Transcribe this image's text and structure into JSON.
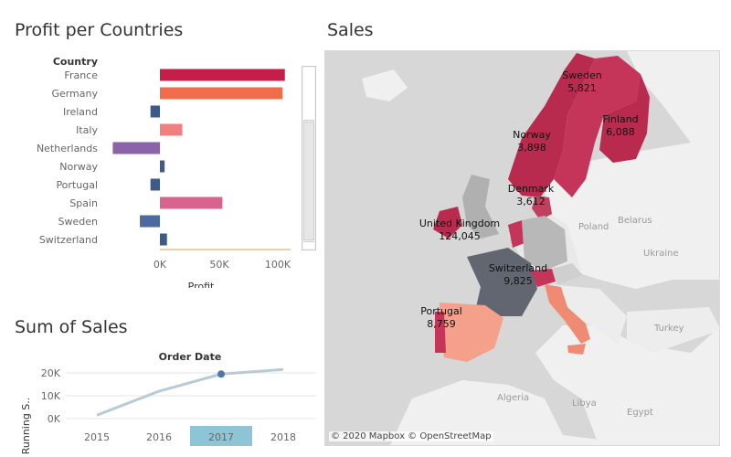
{
  "profit_chart": {
    "title": "Profit per Countries",
    "column_header": "Country",
    "x_label": "Profit",
    "ticks": [
      "0K",
      "50K",
      "100K"
    ]
  },
  "sales_map": {
    "title": "Sales",
    "attribution": "© 2020 Mapbox © OpenStreetMap",
    "countries": [
      {
        "name": "Sweden",
        "value": "5,821"
      },
      {
        "name": "Finland",
        "value": "6,088"
      },
      {
        "name": "Norway",
        "value": "3,898"
      },
      {
        "name": "Denmark",
        "value": "3,612"
      },
      {
        "name": "United Kingdom",
        "value": "124,045"
      },
      {
        "name": "Switzerland",
        "value": "9,825"
      },
      {
        "name": "Portugal",
        "value": "8,759"
      }
    ],
    "background_labels": [
      "Poland",
      "Belarus",
      "Ukraine",
      "Turkey",
      "Algeria",
      "Libya",
      "Egypt"
    ]
  },
  "sales_chart": {
    "title": "Sum of Sales",
    "header": "Order Date",
    "y_label": "Running S..",
    "y_ticks": [
      "20K",
      "10K",
      "0K"
    ],
    "x_ticks": [
      "2015",
      "2016",
      "2017",
      "2018"
    ],
    "highlighted_year": "2017"
  },
  "chart_data": [
    {
      "type": "bar",
      "orientation": "horizontal",
      "title": "Profit per Countries",
      "ylabel": "Country",
      "xlabel": "Profit",
      "categories": [
        "France",
        "Germany",
        "Ireland",
        "Italy",
        "Netherlands",
        "Norway",
        "Portugal",
        "Spain",
        "Sweden",
        "Switzerland"
      ],
      "values": [
        106000,
        104000,
        -8000,
        19000,
        -40000,
        4000,
        -8000,
        53000,
        -17000,
        6000
      ],
      "colors": [
        "#c51e4a",
        "#f26b4a",
        "#3c5a8c",
        "#f08080",
        "#8a63a8",
        "#3c5a8c",
        "#3c5a8c",
        "#d9628f",
        "#4c6aa0",
        "#3c5a8c"
      ],
      "xlim": [
        -45000,
        110000
      ],
      "grid": false
    },
    {
      "type": "line",
      "title": "Sum of Sales",
      "xlabel": "Order Date",
      "ylabel": "Running S..",
      "x": [
        "2015",
        "2016",
        "2017",
        "2018"
      ],
      "series": [
        {
          "values": [
            1500,
            12000,
            19500,
            21500
          ]
        }
      ],
      "ylim": [
        0,
        22000
      ],
      "highlight": "2017"
    }
  ]
}
